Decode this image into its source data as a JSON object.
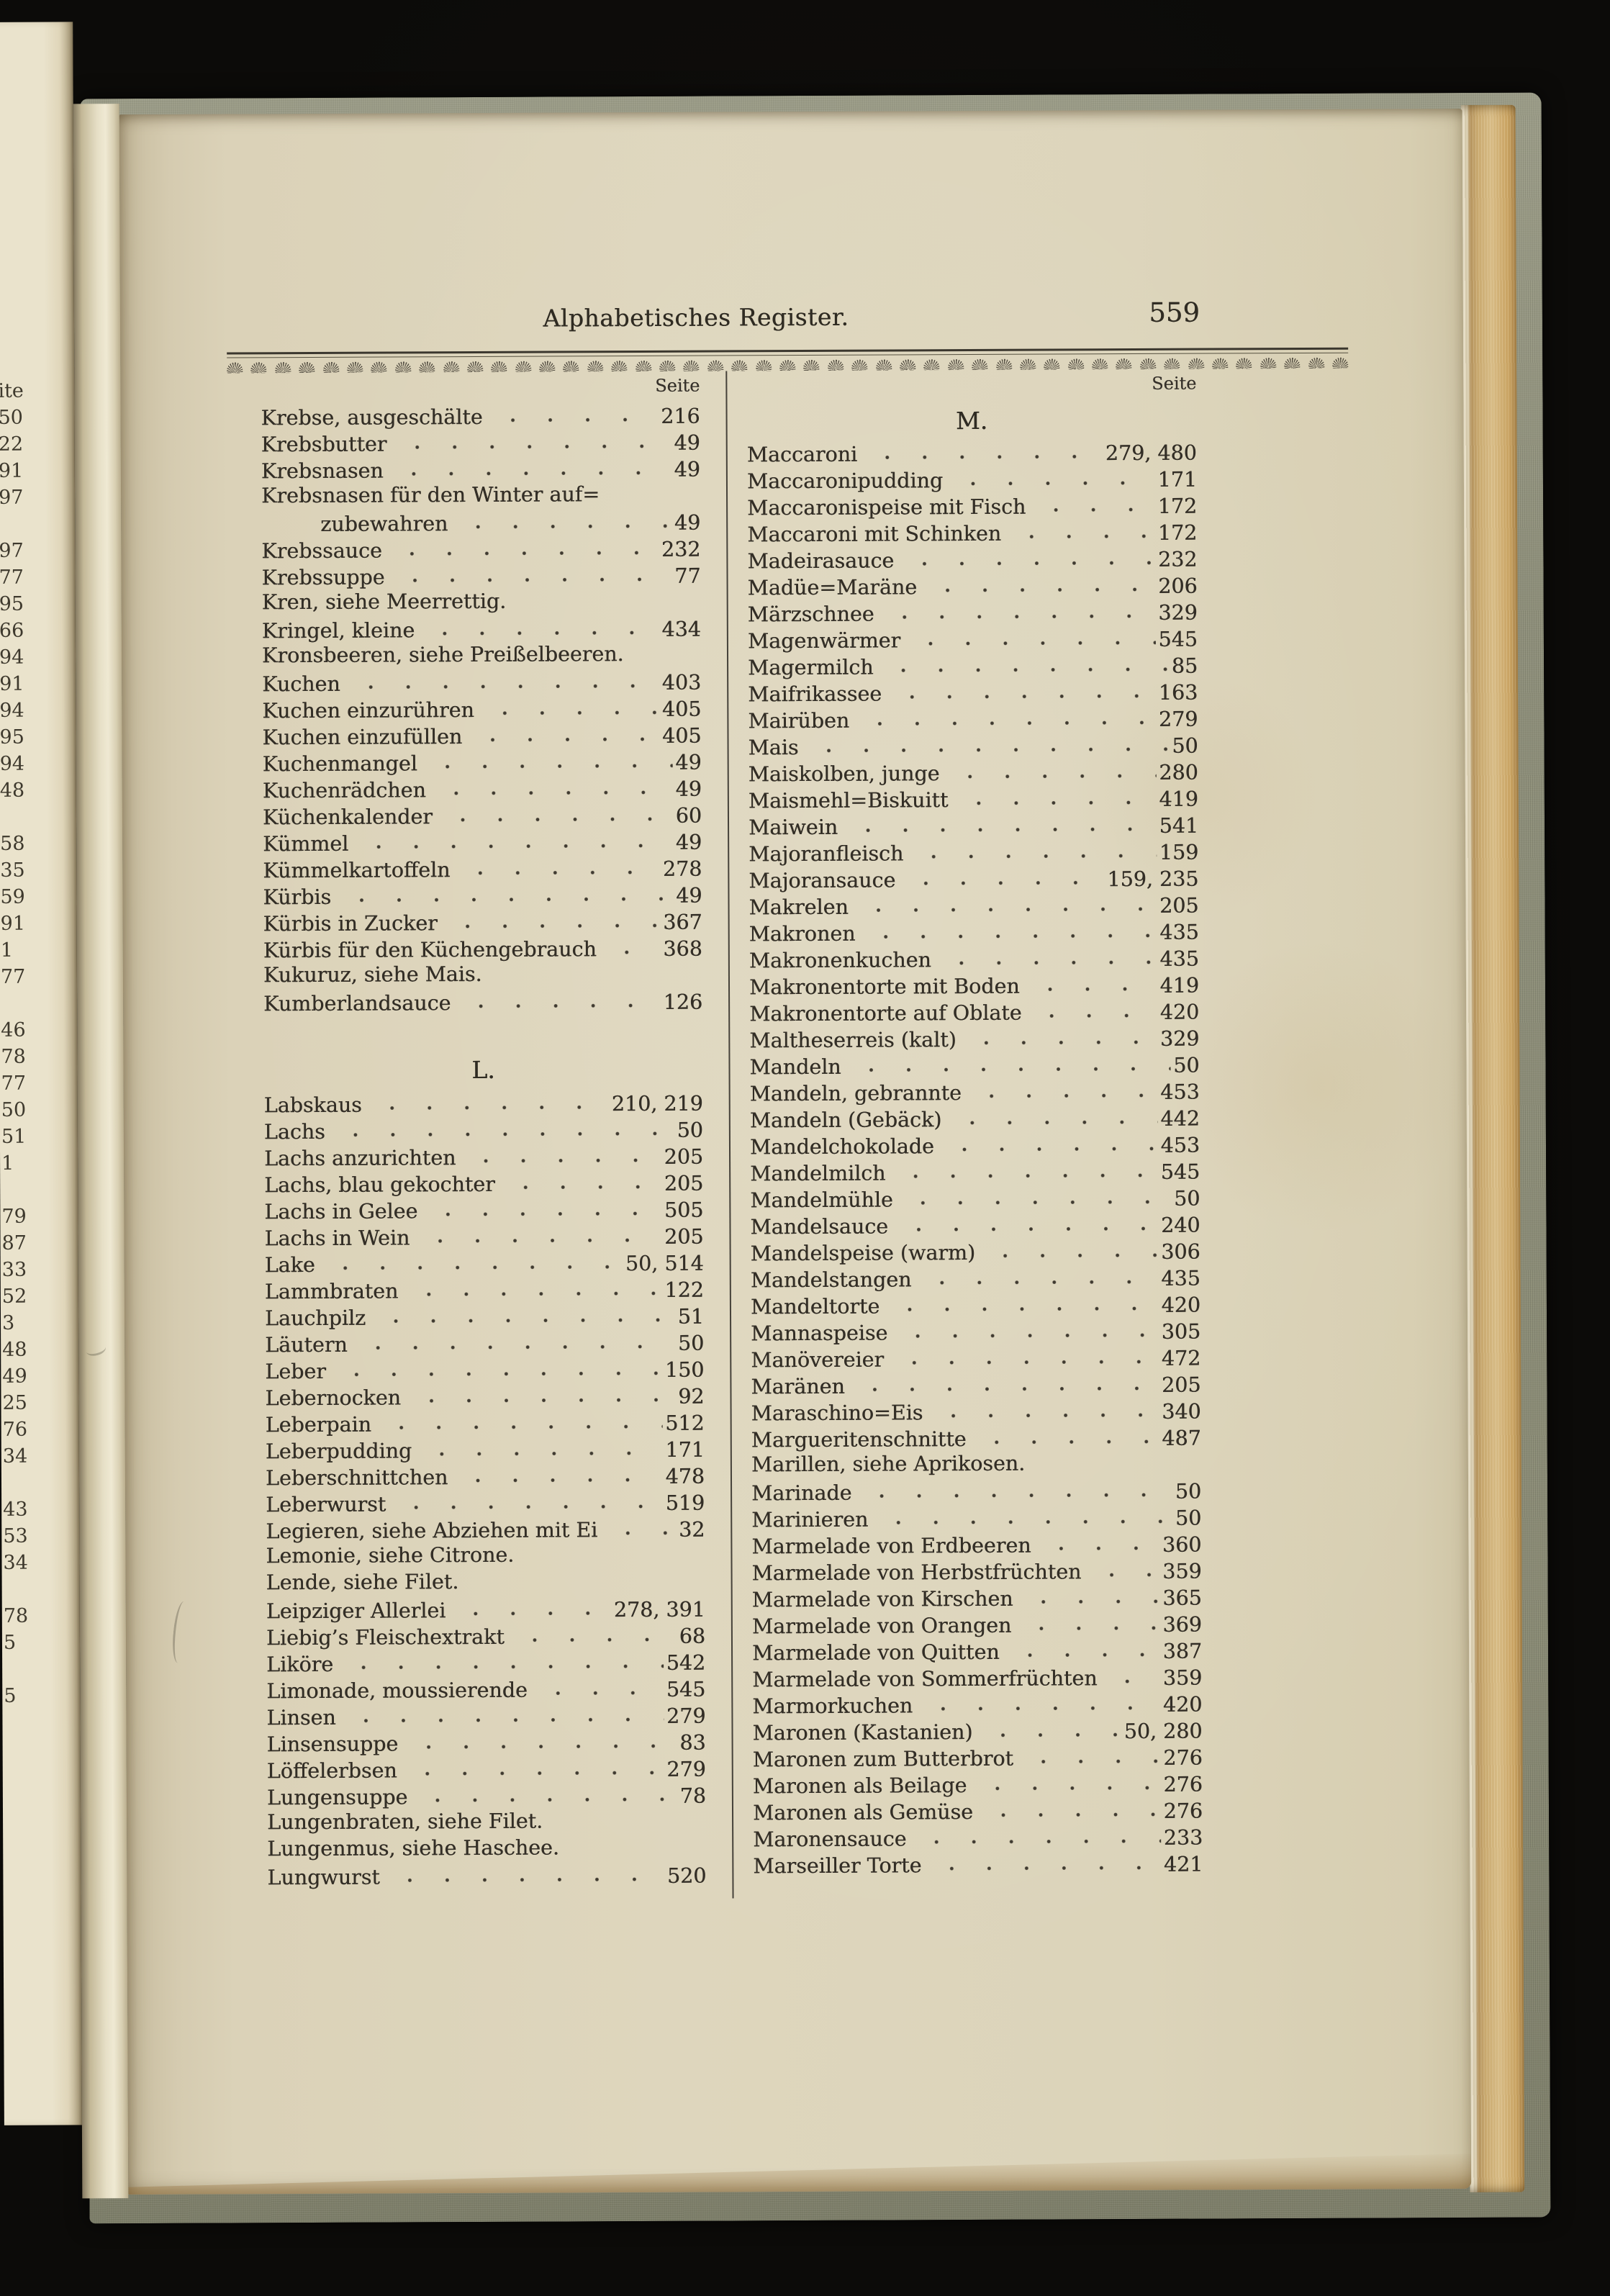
{
  "header": {
    "title": "Alphabetisches Register.",
    "page_number": "559"
  },
  "index": {
    "seite_label": "Seite",
    "left_column": {
      "sections": [
        {
          "header": "",
          "entries": [
            {
              "t": "Krebse, ausgeschälte",
              "p": "216"
            },
            {
              "t": "Krebsbutter",
              "p": "49"
            },
            {
              "t": "Krebsnasen",
              "p": "49"
            },
            {
              "t": "Krebsnasen für den Winter auf="
            },
            {
              "t": "zubewahren",
              "p": "49",
              "i": 1
            },
            {
              "t": "Krebssauce",
              "p": "232"
            },
            {
              "t": "Krebssuppe",
              "p": "77"
            },
            {
              "t": "Kren, siehe Meerrettig."
            },
            {
              "t": "Kringel, kleine",
              "p": "434"
            },
            {
              "t": "Kronsbeeren, siehe Preißelbeeren."
            },
            {
              "t": "Kuchen",
              "p": "403"
            },
            {
              "t": "Kuchen einzurühren",
              "p": "405"
            },
            {
              "t": "Kuchen einzufüllen",
              "p": "405"
            },
            {
              "t": "Kuchenmangel",
              "p": "49"
            },
            {
              "t": "Kuchenrädchen",
              "p": "49"
            },
            {
              "t": "Küchenkalender",
              "p": "60"
            },
            {
              "t": "Kümmel",
              "p": "49"
            },
            {
              "t": "Kümmelkartoffeln",
              "p": "278"
            },
            {
              "t": "Kürbis",
              "p": "49"
            },
            {
              "t": "Kürbis in Zucker",
              "p": "367"
            },
            {
              "t": "Kürbis für den Küchengebrauch",
              "p": "368"
            },
            {
              "t": "Kukuruz, siehe Mais."
            },
            {
              "t": "Kumberlandsauce",
              "p": "126"
            }
          ]
        },
        {
          "header": "L.",
          "entries": [
            {
              "t": "Labskaus",
              "p": "210, 219"
            },
            {
              "t": "Lachs",
              "p": "50"
            },
            {
              "t": "Lachs anzurichten",
              "p": "205"
            },
            {
              "t": "Lachs, blau gekochter",
              "p": "205"
            },
            {
              "t": "Lachs in Gelee",
              "p": "505"
            },
            {
              "t": "Lachs in Wein",
              "p": "205"
            },
            {
              "t": "Lake",
              "p": "50, 514"
            },
            {
              "t": "Lammbraten",
              "p": "122"
            },
            {
              "t": "Lauchpilz",
              "p": "51"
            },
            {
              "t": "Läutern",
              "p": "50"
            },
            {
              "t": "Leber",
              "p": "150"
            },
            {
              "t": "Lebernocken",
              "p": "92"
            },
            {
              "t": "Leberpain",
              "p": "512"
            },
            {
              "t": "Leberpudding",
              "p": "171"
            },
            {
              "t": "Leberschnittchen",
              "p": "478"
            },
            {
              "t": "Leberwurst",
              "p": "519"
            },
            {
              "t": "Legieren, siehe Abziehen mit Ei",
              "p": "32"
            },
            {
              "t": "Lemonie, siehe Citrone."
            },
            {
              "t": "Lende, siehe Filet."
            },
            {
              "t": "Leipziger Allerlei",
              "p": "278, 391"
            },
            {
              "t": "Liebig’s Fleischextrakt",
              "p": "68"
            },
            {
              "t": "Liköre",
              "p": "542"
            },
            {
              "t": "Limonade, moussierende",
              "p": "545"
            },
            {
              "t": "Linsen",
              "p": "279"
            },
            {
              "t": "Linsensuppe",
              "p": "83"
            },
            {
              "t": "Löffelerbsen",
              "p": "279"
            },
            {
              "t": "Lungensuppe",
              "p": "78"
            },
            {
              "t": "Lungenbraten, siehe Filet."
            },
            {
              "t": "Lungenmus, siehe Haschee."
            },
            {
              "t": "Lungwurst",
              "p": "520"
            }
          ]
        }
      ]
    },
    "right_column": {
      "sections": [
        {
          "header": "M.",
          "entries": [
            {
              "t": "Maccaroni",
              "p": "279, 480"
            },
            {
              "t": "Maccaronipudding",
              "p": "171"
            },
            {
              "t": "Maccaronispeise mit Fisch",
              "p": "172"
            },
            {
              "t": "Maccaroni mit Schinken",
              "p": "172"
            },
            {
              "t": "Madeirasauce",
              "p": "232"
            },
            {
              "t": "Madüe=Maräne",
              "p": "206"
            },
            {
              "t": "Märzschnee",
              "p": "329"
            },
            {
              "t": "Magenwärmer",
              "p": "545"
            },
            {
              "t": "Magermilch",
              "p": "85"
            },
            {
              "t": "Maifrikassee",
              "p": "163"
            },
            {
              "t": "Mairüben",
              "p": "279"
            },
            {
              "t": "Mais",
              "p": "50"
            },
            {
              "t": "Maiskolben, junge",
              "p": "280"
            },
            {
              "t": "Maismehl=Biskuitt",
              "p": "419"
            },
            {
              "t": "Maiwein",
              "p": "541"
            },
            {
              "t": "Majoranfleisch",
              "p": "159"
            },
            {
              "t": "Majoransauce",
              "p": "159, 235"
            },
            {
              "t": "Makrelen",
              "p": "205"
            },
            {
              "t": "Makronen",
              "p": "435"
            },
            {
              "t": "Makronenkuchen",
              "p": "435"
            },
            {
              "t": "Makronentorte mit Boden",
              "p": "419"
            },
            {
              "t": "Makronentorte auf Oblate",
              "p": "420"
            },
            {
              "t": "Maltheserreis (kalt)",
              "p": "329"
            },
            {
              "t": "Mandeln",
              "p": "50"
            },
            {
              "t": "Mandeln, gebrannte",
              "p": "453"
            },
            {
              "t": "Mandeln (Gebäck)",
              "p": "442"
            },
            {
              "t": "Mandelchokolade",
              "p": "453"
            },
            {
              "t": "Mandelmilch",
              "p": "545"
            },
            {
              "t": "Mandelmühle",
              "p": "50"
            },
            {
              "t": "Mandelsauce",
              "p": "240"
            },
            {
              "t": "Mandelspeise (warm)",
              "p": "306"
            },
            {
              "t": "Mandelstangen",
              "p": "435"
            },
            {
              "t": "Mandeltorte",
              "p": "420"
            },
            {
              "t": "Mannaspeise",
              "p": "305"
            },
            {
              "t": "Manövereier",
              "p": "472"
            },
            {
              "t": "Maränen",
              "p": "205"
            },
            {
              "t": "Maraschino=Eis",
              "p": "340"
            },
            {
              "t": "Margueritenschnitte",
              "p": "487"
            },
            {
              "t": "Marillen, siehe Aprikosen."
            },
            {
              "t": "Marinade",
              "p": "50"
            },
            {
              "t": "Marinieren",
              "p": "50"
            },
            {
              "t": "Marmelade von Erdbeeren",
              "p": "360"
            },
            {
              "t": "Marmelade von Herbstfrüchten",
              "p": "359"
            },
            {
              "t": "Marmelade von Kirschen",
              "p": "365"
            },
            {
              "t": "Marmelade von Orangen",
              "p": "369"
            },
            {
              "t": "Marmelade von Quitten",
              "p": "387"
            },
            {
              "t": "Marmelade von Sommerfrüchten",
              "p": "359"
            },
            {
              "t": "Marmorkuchen",
              "p": "420"
            },
            {
              "t": "Maronen (Kastanien)",
              "p": "50, 280"
            },
            {
              "t": "Maronen zum Butterbrot",
              "p": "276"
            },
            {
              "t": "Maronen als Beilage",
              "p": "276"
            },
            {
              "t": "Maronen als Gemüse",
              "p": "276"
            },
            {
              "t": "Maronensauce",
              "p": "233"
            },
            {
              "t": "Marseiller Torte",
              "p": "421"
            }
          ]
        }
      ]
    }
  },
  "facing_page": {
    "fragments": [
      "ite",
      "50",
      "22",
      "91",
      "97",
      "",
      "97",
      "77",
      "95",
      "66",
      "94",
      "91",
      "94",
      "95",
      "94",
      "48",
      "",
      "58",
      "35",
      "59",
      "91",
      "1",
      "77",
      "",
      "46",
      "78",
      "77",
      "50",
      "51",
      "1",
      "",
      "79",
      "87",
      "33",
      "52",
      "3",
      "48",
      "49",
      "25",
      "76",
      "34",
      "",
      "43",
      "53",
      "34",
      "",
      "78",
      "5",
      "",
      "5",
      "",
      "",
      "",
      "",
      ""
    ]
  },
  "ornaments": {
    "count": 47
  },
  "colors": {
    "paper": "#dcd4ba",
    "ink": "#332e26",
    "cover_cloth": "#8e8f7a",
    "fore_edge_tan": "#c9a96f",
    "background": "#0c0b09"
  }
}
